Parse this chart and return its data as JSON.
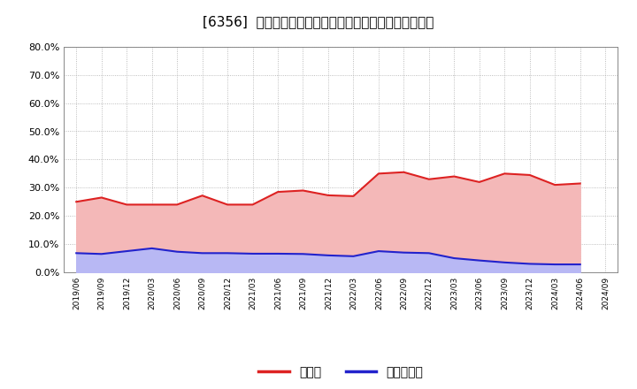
{
  "title": "[6356]  現預金、有利子負債の総資産に対する比率の推移",
  "background_color": "#ffffff",
  "plot_bg_color": "#ffffff",
  "grid_color": "#aaaaaa",
  "x_labels": [
    "2019/06",
    "2019/09",
    "2019/12",
    "2020/03",
    "2020/06",
    "2020/09",
    "2020/12",
    "2021/03",
    "2021/06",
    "2021/09",
    "2021/12",
    "2022/03",
    "2022/06",
    "2022/09",
    "2022/12",
    "2023/03",
    "2023/06",
    "2023/09",
    "2023/12",
    "2024/03",
    "2024/06",
    "2024/09"
  ],
  "cash_values": [
    0.25,
    0.265,
    0.24,
    0.24,
    0.24,
    0.272,
    0.24,
    0.24,
    0.285,
    0.29,
    0.273,
    0.27,
    0.35,
    0.355,
    0.33,
    0.34,
    0.32,
    0.35,
    0.345,
    0.31,
    0.315,
    null
  ],
  "debt_values": [
    0.068,
    0.065,
    0.075,
    0.085,
    0.073,
    0.068,
    0.068,
    0.066,
    0.066,
    0.065,
    0.06,
    0.057,
    0.075,
    0.07,
    0.068,
    0.05,
    0.042,
    0.035,
    0.03,
    0.028,
    0.028,
    null
  ],
  "cash_color": "#dd2222",
  "debt_color": "#2222cc",
  "cash_fill_color": "#f4b8b8",
  "debt_fill_color": "#b8b8f4",
  "ylim": [
    0.0,
    0.8
  ],
  "yticks": [
    0.0,
    0.1,
    0.2,
    0.3,
    0.4,
    0.5,
    0.6,
    0.7,
    0.8
  ],
  "legend_cash": "現預金",
  "legend_debt": "有利子負債",
  "line_width": 1.5,
  "title_fontsize": 11
}
